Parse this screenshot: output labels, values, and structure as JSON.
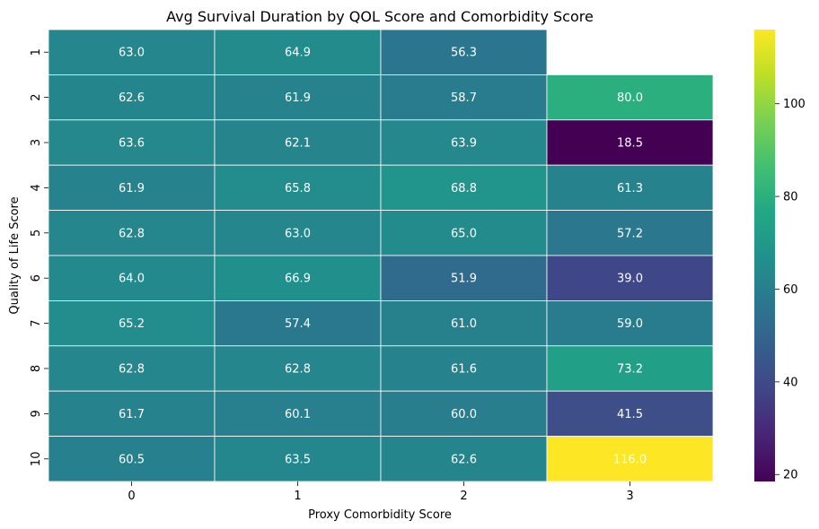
{
  "chart_data": {
    "type": "heatmap",
    "title": "Avg Survival Duration by QOL Score and Comorbidity Score",
    "xlabel": "Proxy Comorbidity Score",
    "ylabel": "Quality of Life Score",
    "x_categories": [
      "0",
      "1",
      "2",
      "3"
    ],
    "y_categories": [
      "1",
      "2",
      "3",
      "4",
      "5",
      "6",
      "7",
      "8",
      "9",
      "10"
    ],
    "values": [
      [
        63.0,
        64.9,
        56.3,
        null
      ],
      [
        62.6,
        61.9,
        58.7,
        80.0
      ],
      [
        63.6,
        62.1,
        63.9,
        18.5
      ],
      [
        61.9,
        65.8,
        68.8,
        61.3
      ],
      [
        62.8,
        63.0,
        65.0,
        57.2
      ],
      [
        64.0,
        66.9,
        51.9,
        39.0
      ],
      [
        65.2,
        57.4,
        61.0,
        59.0
      ],
      [
        62.8,
        62.8,
        61.6,
        73.2
      ],
      [
        61.7,
        60.1,
        60.0,
        41.5
      ],
      [
        60.5,
        63.5,
        62.6,
        116.0
      ]
    ],
    "value_format": "0.0",
    "colormap": "viridis",
    "color_range": [
      18.5,
      116.0
    ],
    "colorbar_ticks": [
      "20",
      "40",
      "60",
      "80",
      "100"
    ],
    "colorbar_tick_values": [
      20,
      40,
      60,
      80,
      100
    ],
    "missing_cells": "blank"
  }
}
